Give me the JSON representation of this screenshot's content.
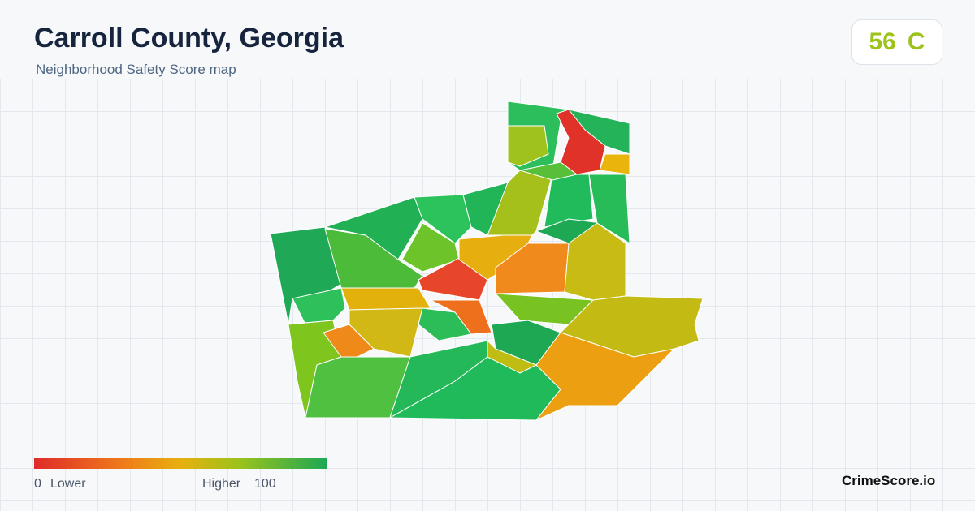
{
  "header": {
    "title": "Carroll County, Georgia",
    "subtitle": "Neighborhood Safety Score map"
  },
  "score": {
    "value": 56,
    "grade": "C"
  },
  "legend": {
    "min": 0,
    "min_label": "Lower",
    "max_label": "Higher",
    "max": 100
  },
  "footer": {
    "brand": "CrimeScore.io"
  }
}
